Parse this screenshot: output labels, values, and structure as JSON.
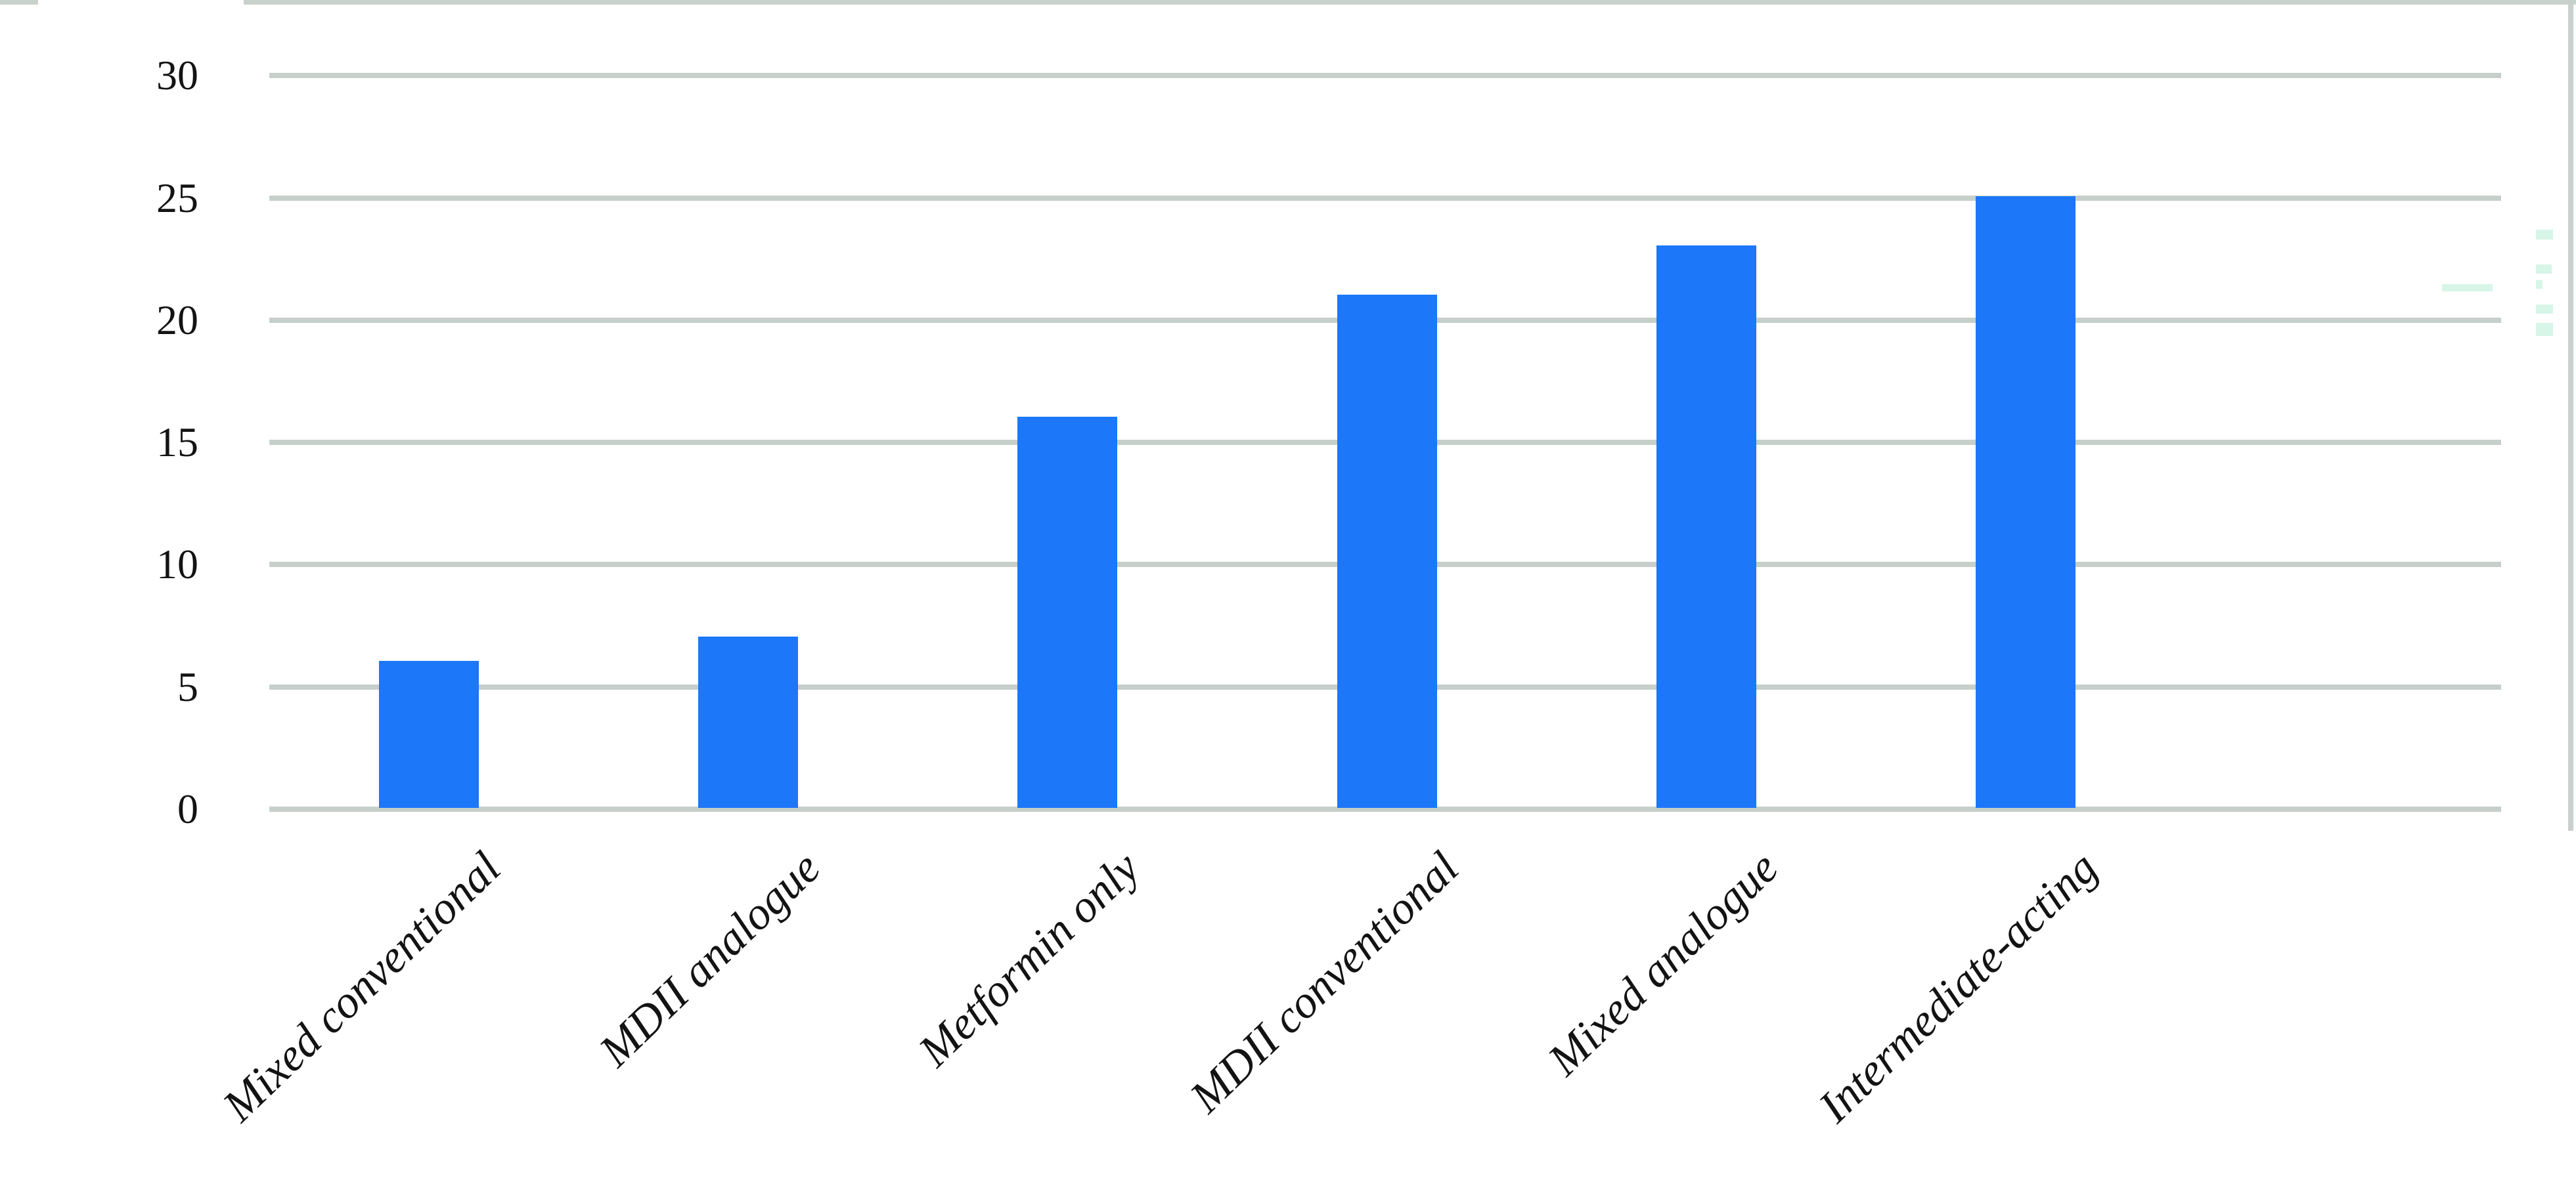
{
  "chart_data": {
    "type": "bar",
    "title": "",
    "xlabel": "",
    "ylabel": "",
    "categories": [
      "Mixed conventional",
      "MDII analogue",
      "Metformin only",
      "MDII conventional",
      "Mixed analogue",
      "Intermediate-acting"
    ],
    "values": [
      6,
      7,
      16,
      21,
      23,
      25
    ],
    "yticks": [
      30,
      25,
      20,
      15,
      10,
      5,
      0
    ],
    "ylim": [
      0,
      30
    ],
    "grid": true,
    "legend": false,
    "bar_color": "#1c77f9",
    "gridline_color": "#c7cfca",
    "border_color": "#c9d1cd",
    "tick_label_color": "#131313",
    "artifact_color": "#d7f5e8"
  }
}
